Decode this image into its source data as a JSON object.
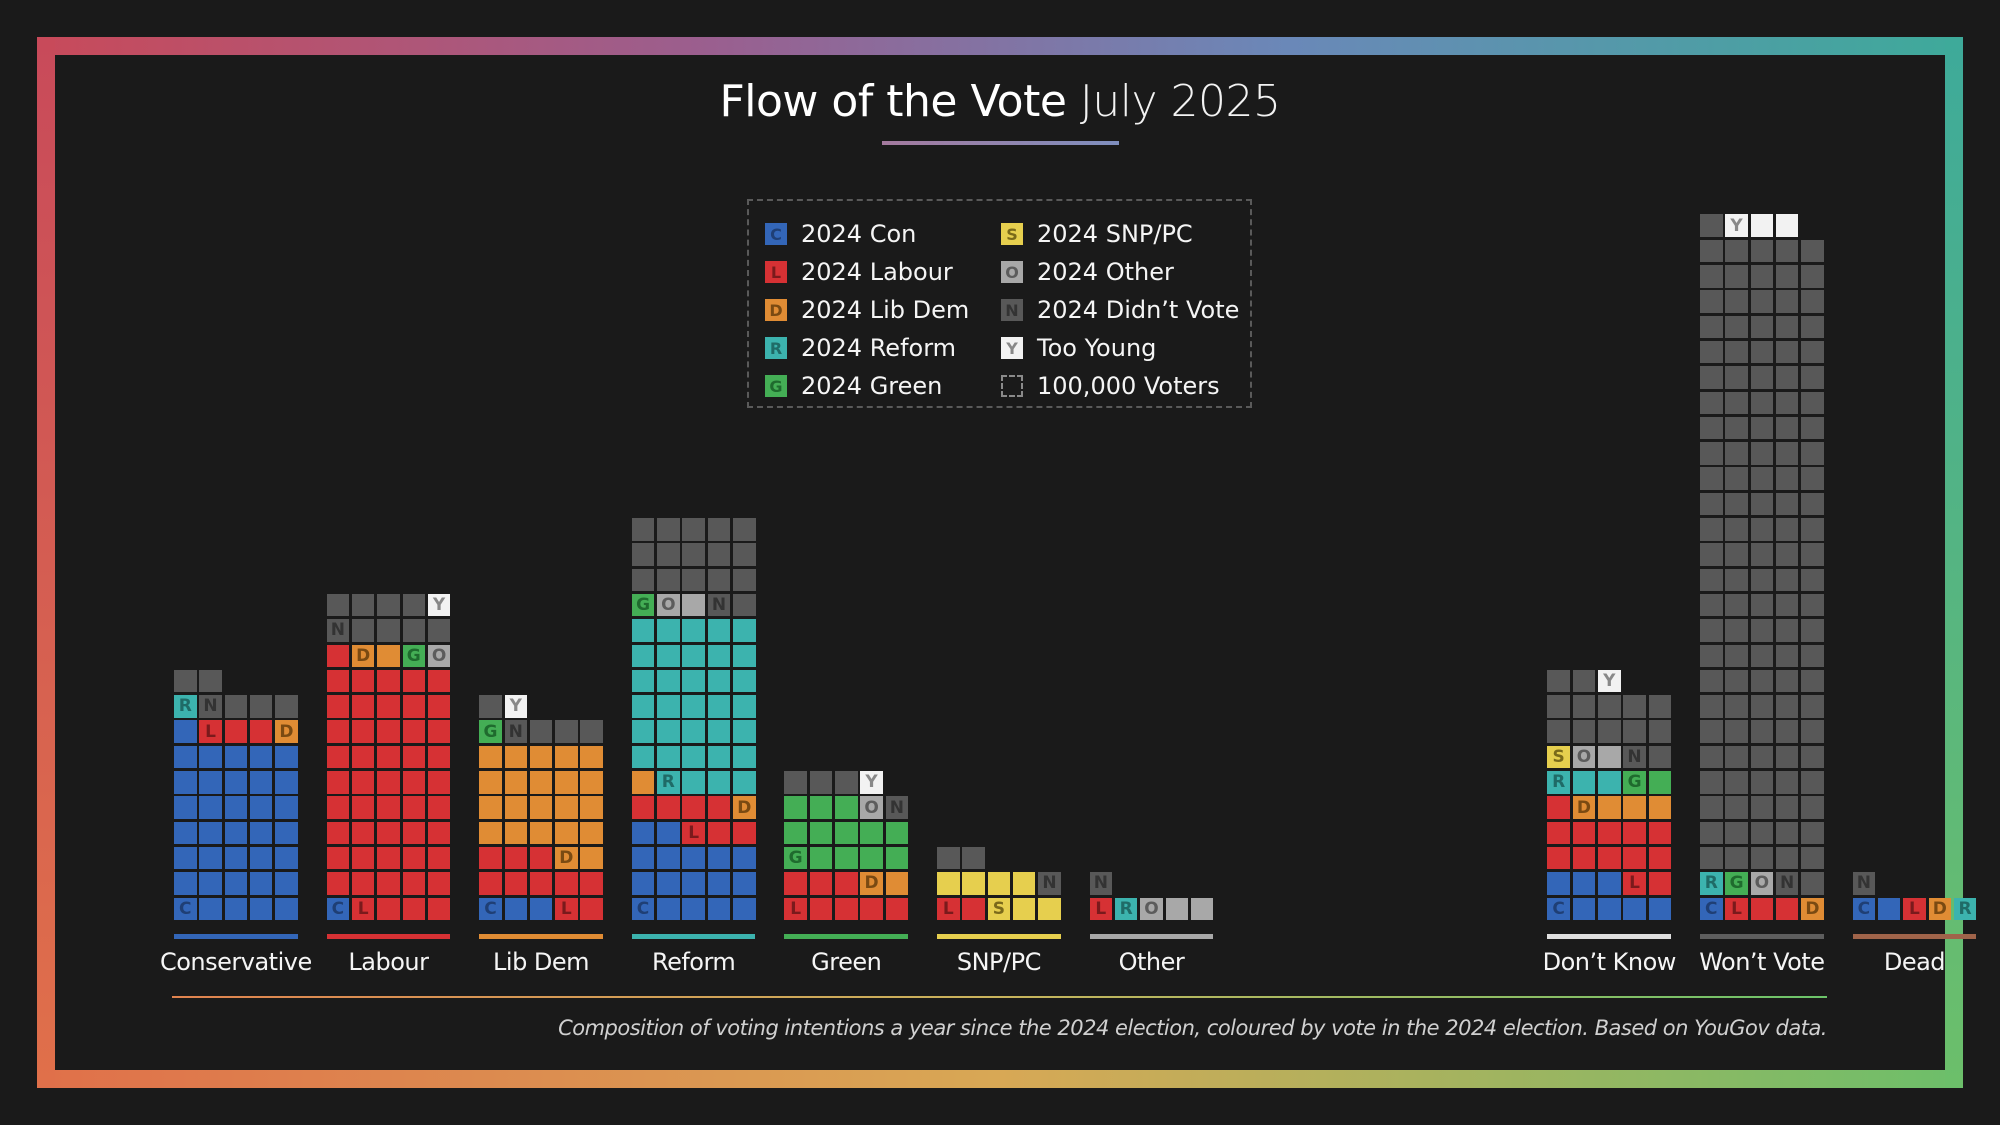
{
  "title": {
    "main": "Flow of the Vote",
    "sub": "July 2025"
  },
  "colors": {
    "background": "#1a1a1a",
    "C": "#3366b8",
    "L": "#d63134",
    "D": "#e08c34",
    "R": "#3cb3ae",
    "G": "#44ae55",
    "S": "#e6cf4e",
    "O": "#a8a8a8",
    "N": "#585858",
    "Y": "#f2f2f2",
    "frame_gradient": [
      "#c84a5a",
      "#8f6a9e",
      "#5a8fc0",
      "#3ea99a",
      "#6cbf6a",
      "#d8a855",
      "#e07a4a"
    ]
  },
  "letter_colors": {
    "C": "#1f3f75",
    "L": "#7a1a1c",
    "D": "#7a4a12",
    "R": "#1f6b67",
    "G": "#1f6b2e",
    "S": "#7a6a1a",
    "O": "#5c5c5c",
    "N": "#333333",
    "Y": "#888888"
  },
  "legend": {
    "items": [
      {
        "code": "C",
        "label": "2024 Con"
      },
      {
        "code": "L",
        "label": "2024 Labour"
      },
      {
        "code": "D",
        "label": "2024 Lib Dem"
      },
      {
        "code": "R",
        "label": "2024 Reform"
      },
      {
        "code": "G",
        "label": "2024 Green"
      },
      {
        "code": "S",
        "label": "2024 SNP/PC"
      },
      {
        "code": "O",
        "label": "2024 Other"
      },
      {
        "code": "N",
        "label": "2024 Didn’t Vote"
      },
      {
        "code": "Y",
        "label": "Too Young"
      },
      {
        "code": "unit",
        "label": "100,000 Voters"
      }
    ]
  },
  "footnote": "Composition of voting intentions a year since the 2024 election, coloured by vote in the 2024 election. Based on YouGov data.",
  "chart_data": {
    "type": "waffle-stacked-bar",
    "title": "Flow of the Vote July 2025",
    "unit": "1 square = 100,000 voters",
    "cells_per_row": 5,
    "stack_order": [
      "C",
      "L",
      "D",
      "R",
      "G",
      "S",
      "O",
      "N",
      "Y"
    ],
    "categories": [
      "Conservative",
      "Labour",
      "Lib Dem",
      "Reform",
      "Green",
      "SNP/PC",
      "Other",
      "Don’t Know",
      "Won’t Vote",
      "Dead"
    ],
    "category_colors": [
      "#3366b8",
      "#d63134",
      "#e08c34",
      "#3cb3ae",
      "#44ae55",
      "#e6cf4e",
      "#a8a8a8",
      "#e0e0e0",
      "#5e5e5e",
      "#a0644a"
    ],
    "gap_before": [
      false,
      false,
      false,
      false,
      false,
      false,
      false,
      true,
      false,
      false
    ],
    "series": [
      {
        "name": "2024 Con",
        "code": "C",
        "values": [
          36,
          1,
          3,
          17,
          0,
          0,
          0,
          8,
          1,
          2
        ]
      },
      {
        "name": "2024 Labour",
        "code": "L",
        "values": [
          3,
          50,
          10,
          7,
          8,
          2,
          1,
          13,
          3,
          1
        ]
      },
      {
        "name": "2024 Lib Dem",
        "code": "D",
        "values": [
          1,
          2,
          22,
          2,
          2,
          0,
          0,
          4,
          1,
          1
        ]
      },
      {
        "name": "2024 Reform",
        "code": "R",
        "values": [
          1,
          0,
          0,
          34,
          0,
          0,
          1,
          3,
          1,
          1
        ]
      },
      {
        "name": "2024 Green",
        "code": "G",
        "values": [
          0,
          1,
          1,
          1,
          13,
          0,
          0,
          2,
          1,
          0
        ]
      },
      {
        "name": "2024 SNP/PC",
        "code": "S",
        "values": [
          0,
          0,
          0,
          0,
          0,
          7,
          0,
          1,
          0,
          0
        ]
      },
      {
        "name": "2024 Other",
        "code": "O",
        "values": [
          0,
          1,
          0,
          2,
          1,
          0,
          3,
          2,
          1,
          0
        ]
      },
      {
        "name": "2024 Didn’t Vote",
        "code": "N",
        "values": [
          6,
          9,
          5,
          17,
          4,
          3,
          1,
          14,
          128,
          1
        ]
      },
      {
        "name": "Too Young",
        "code": "Y",
        "values": [
          0,
          1,
          1,
          0,
          1,
          0,
          0,
          1,
          3,
          0
        ]
      }
    ],
    "totals": [
      47,
      65,
      42,
      80,
      29,
      12,
      6,
      48,
      139,
      6
    ],
    "legend_position": "top-center",
    "grid": false
  }
}
